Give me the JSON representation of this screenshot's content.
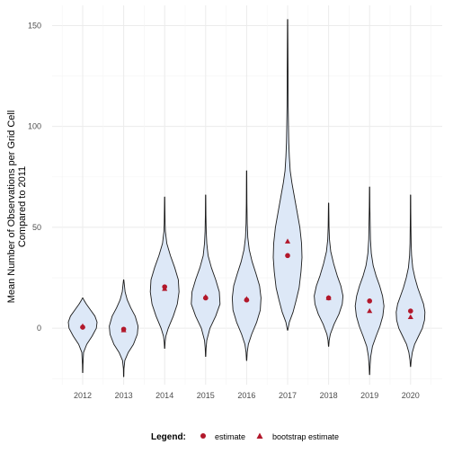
{
  "chart_data": {
    "type": "violin",
    "title": "",
    "xlabel": "",
    "ylabel_lines": [
      "Mean Number of Observations per Grid Cell",
      "Compared to 2011"
    ],
    "categories": [
      "2012",
      "2013",
      "2014",
      "2015",
      "2016",
      "2017",
      "2018",
      "2019",
      "2020"
    ],
    "ylim": [
      -28,
      160
    ],
    "yticks": [
      0,
      50,
      100,
      150
    ],
    "grid": true,
    "violins": [
      {
        "min": -22,
        "max": 15,
        "profile": [
          [
            -22,
            0.01
          ],
          [
            -18,
            0.02
          ],
          [
            -12,
            0.06
          ],
          [
            -8,
            0.28
          ],
          [
            -4,
            0.65
          ],
          [
            0,
            0.95
          ],
          [
            3,
            1.0
          ],
          [
            6,
            0.85
          ],
          [
            9,
            0.55
          ],
          [
            12,
            0.25
          ],
          [
            14,
            0.08
          ],
          [
            15,
            0.01
          ]
        ]
      },
      {
        "min": -24,
        "max": 24,
        "profile": [
          [
            -24,
            0.01
          ],
          [
            -20,
            0.02
          ],
          [
            -16,
            0.08
          ],
          [
            -12,
            0.32
          ],
          [
            -8,
            0.68
          ],
          [
            -3,
            0.95
          ],
          [
            1,
            1.0
          ],
          [
            6,
            0.8
          ],
          [
            10,
            0.5
          ],
          [
            14,
            0.25
          ],
          [
            18,
            0.1
          ],
          [
            22,
            0.04
          ],
          [
            24,
            0.01
          ]
        ]
      },
      {
        "min": -10,
        "max": 65,
        "profile": [
          [
            -10,
            0.01
          ],
          [
            -7,
            0.03
          ],
          [
            -4,
            0.08
          ],
          [
            0,
            0.25
          ],
          [
            6,
            0.6
          ],
          [
            12,
            0.88
          ],
          [
            18,
            1.0
          ],
          [
            24,
            0.95
          ],
          [
            30,
            0.7
          ],
          [
            36,
            0.4
          ],
          [
            42,
            0.15
          ],
          [
            48,
            0.05
          ],
          [
            52,
            0.03
          ],
          [
            58,
            0.02
          ],
          [
            65,
            0.01
          ]
        ]
      },
      {
        "min": -14,
        "max": 66,
        "profile": [
          [
            -14,
            0.01
          ],
          [
            -10,
            0.03
          ],
          [
            -6,
            0.08
          ],
          [
            0,
            0.3
          ],
          [
            6,
            0.7
          ],
          [
            12,
            1.0
          ],
          [
            18,
            0.95
          ],
          [
            24,
            0.7
          ],
          [
            30,
            0.4
          ],
          [
            36,
            0.17
          ],
          [
            42,
            0.08
          ],
          [
            48,
            0.04
          ],
          [
            56,
            0.02
          ],
          [
            66,
            0.01
          ]
        ]
      },
      {
        "min": -16,
        "max": 78,
        "profile": [
          [
            -16,
            0.01
          ],
          [
            -12,
            0.04
          ],
          [
            -8,
            0.12
          ],
          [
            -3,
            0.35
          ],
          [
            3,
            0.7
          ],
          [
            9,
            0.95
          ],
          [
            15,
            1.0
          ],
          [
            21,
            0.9
          ],
          [
            27,
            0.65
          ],
          [
            33,
            0.38
          ],
          [
            39,
            0.18
          ],
          [
            45,
            0.08
          ],
          [
            52,
            0.04
          ],
          [
            62,
            0.02
          ],
          [
            70,
            0.015
          ],
          [
            78,
            0.01
          ]
        ]
      },
      {
        "min": -1,
        "max": 153,
        "profile": [
          [
            -1,
            0.01
          ],
          [
            3,
            0.12
          ],
          [
            8,
            0.38
          ],
          [
            14,
            0.6
          ],
          [
            20,
            0.8
          ],
          [
            28,
            0.93
          ],
          [
            35,
            1.0
          ],
          [
            42,
            0.97
          ],
          [
            50,
            0.85
          ],
          [
            58,
            0.65
          ],
          [
            66,
            0.45
          ],
          [
            72,
            0.3
          ],
          [
            78,
            0.18
          ],
          [
            85,
            0.12
          ],
          [
            92,
            0.08
          ],
          [
            100,
            0.06
          ],
          [
            110,
            0.04
          ],
          [
            125,
            0.03
          ],
          [
            140,
            0.02
          ],
          [
            153,
            0.01
          ]
        ]
      },
      {
        "min": -9,
        "max": 62,
        "profile": [
          [
            -9,
            0.01
          ],
          [
            -6,
            0.04
          ],
          [
            -3,
            0.12
          ],
          [
            2,
            0.38
          ],
          [
            7,
            0.72
          ],
          [
            12,
            0.95
          ],
          [
            16,
            1.0
          ],
          [
            21,
            0.85
          ],
          [
            26,
            0.6
          ],
          [
            32,
            0.35
          ],
          [
            38,
            0.15
          ],
          [
            44,
            0.06
          ],
          [
            50,
            0.03
          ],
          [
            56,
            0.02
          ],
          [
            62,
            0.01
          ]
        ]
      },
      {
        "min": -23,
        "max": 70,
        "profile": [
          [
            -23,
            0.01
          ],
          [
            -19,
            0.03
          ],
          [
            -14,
            0.08
          ],
          [
            -9,
            0.2
          ],
          [
            -4,
            0.45
          ],
          [
            1,
            0.72
          ],
          [
            6,
            0.92
          ],
          [
            11,
            1.0
          ],
          [
            16,
            0.9
          ],
          [
            21,
            0.7
          ],
          [
            26,
            0.45
          ],
          [
            31,
            0.25
          ],
          [
            37,
            0.12
          ],
          [
            44,
            0.06
          ],
          [
            52,
            0.04
          ],
          [
            60,
            0.02
          ],
          [
            70,
            0.01
          ]
        ]
      },
      {
        "min": -19,
        "max": 66,
        "profile": [
          [
            -19,
            0.01
          ],
          [
            -16,
            0.04
          ],
          [
            -12,
            0.12
          ],
          [
            -8,
            0.28
          ],
          [
            -4,
            0.55
          ],
          [
            0,
            0.82
          ],
          [
            4,
            0.97
          ],
          [
            8,
            1.0
          ],
          [
            12,
            0.9
          ],
          [
            16,
            0.7
          ],
          [
            20,
            0.5
          ],
          [
            25,
            0.3
          ],
          [
            30,
            0.15
          ],
          [
            36,
            0.07
          ],
          [
            42,
            0.04
          ],
          [
            50,
            0.025
          ],
          [
            58,
            0.015
          ],
          [
            66,
            0.01
          ]
        ]
      }
    ],
    "series": [
      {
        "name": "estimate",
        "marker": "circle",
        "color": "#b2182b",
        "values": [
          0.5,
          -0.5,
          20.5,
          15,
          14,
          36,
          15,
          13.5,
          8.5
        ]
      },
      {
        "name": "bootstrap estimate",
        "marker": "triangle",
        "color": "#b2182b",
        "values": [
          1,
          -1,
          19.5,
          15.5,
          14.5,
          43,
          15,
          8.5,
          5.5
        ]
      }
    ],
    "violin_fill": "#dde8f7",
    "violin_stroke": "#1a1a1a",
    "legend": {
      "title": "Legend:",
      "position": "bottom"
    }
  }
}
